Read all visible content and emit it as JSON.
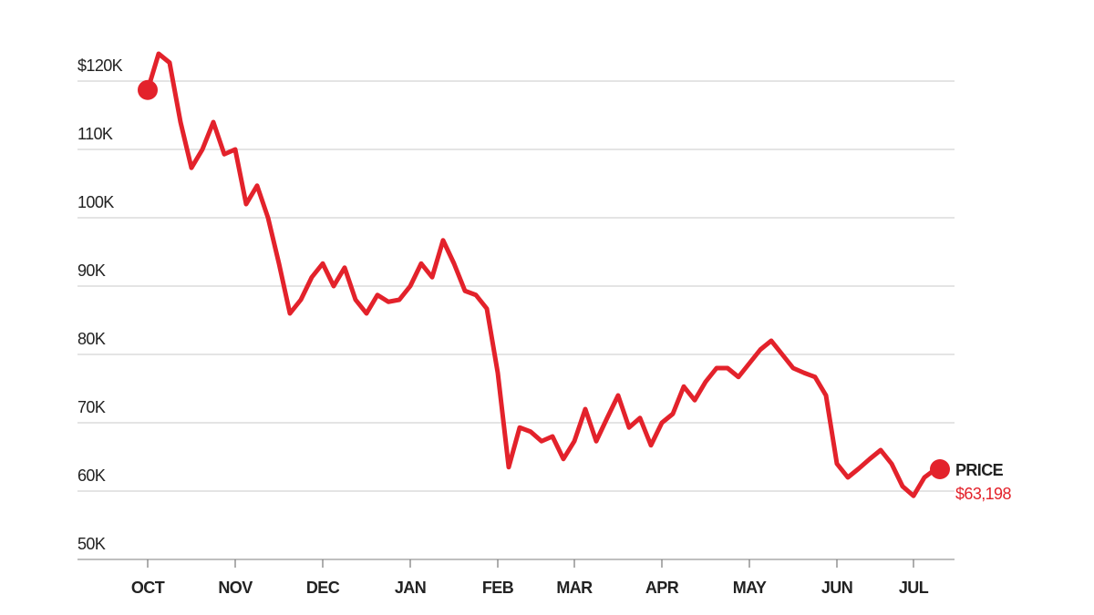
{
  "chart_data": {
    "type": "line",
    "categories": [
      "OCT",
      null,
      null,
      null,
      null,
      null,
      null,
      null,
      "NOV",
      null,
      null,
      null,
      null,
      null,
      null,
      null,
      "DEC",
      null,
      null,
      null,
      null,
      null,
      null,
      null,
      "JAN",
      null,
      null,
      null,
      null,
      null,
      null,
      null,
      "FEB",
      null,
      null,
      null,
      null,
      null,
      null,
      "MAR",
      null,
      null,
      null,
      null,
      null,
      null,
      null,
      "APR",
      null,
      null,
      null,
      null,
      null,
      null,
      null,
      "MAY",
      null,
      null,
      null,
      null,
      null,
      null,
      null,
      "JUN",
      null,
      null,
      null,
      null,
      null,
      null,
      "JUL",
      null,
      null
    ],
    "series": [
      {
        "name": "PRICE",
        "color": "#e3222b",
        "values": [
          118700,
          124000,
          122700,
          114000,
          107300,
          110000,
          114000,
          109300,
          110000,
          102000,
          104700,
          100000,
          93300,
          86000,
          88000,
          91300,
          93300,
          90000,
          92700,
          88000,
          86000,
          88700,
          87700,
          88000,
          90000,
          93300,
          91300,
          96700,
          93300,
          89300,
          88700,
          86700,
          77300,
          63500,
          69300,
          68700,
          67300,
          68000,
          64700,
          67300,
          72000,
          67300,
          70700,
          74000,
          69300,
          70700,
          66700,
          70000,
          71300,
          75300,
          73300,
          76000,
          78000,
          78000,
          76700,
          78700,
          80700,
          82000,
          80000,
          78000,
          77300,
          76700,
          74000,
          64000,
          62000,
          63300,
          64700,
          66000,
          64000,
          60700,
          59300,
          62000,
          63198
        ],
        "value_labels": [
          null,
          null,
          null,
          null,
          null,
          null,
          null,
          null,
          null,
          null,
          null,
          null,
          null,
          null,
          null,
          null,
          null,
          null,
          null,
          null,
          null,
          null,
          null,
          null,
          null,
          null,
          null,
          null,
          null,
          null,
          null,
          null,
          null,
          null,
          null,
          null,
          null,
          null,
          null,
          null,
          null,
          null,
          null,
          null,
          null,
          null,
          null,
          null,
          null,
          null,
          null,
          null,
          null,
          null,
          null,
          null,
          null,
          null,
          null,
          null,
          null,
          null,
          null,
          null,
          null,
          null,
          null,
          null,
          null,
          null,
          null,
          null,
          "$63,198"
        ]
      }
    ],
    "ylim": [
      50000,
      126000
    ],
    "yticks": [
      {
        "value": 50000,
        "label": "50K"
      },
      {
        "value": 60000,
        "label": "60K"
      },
      {
        "value": 70000,
        "label": "70K"
      },
      {
        "value": 80000,
        "label": "80K"
      },
      {
        "value": 90000,
        "label": "90K"
      },
      {
        "value": 100000,
        "label": "100K"
      },
      {
        "value": 110000,
        "label": "110K"
      },
      {
        "value": 120000,
        "label": "$120K"
      }
    ],
    "grid": true
  }
}
